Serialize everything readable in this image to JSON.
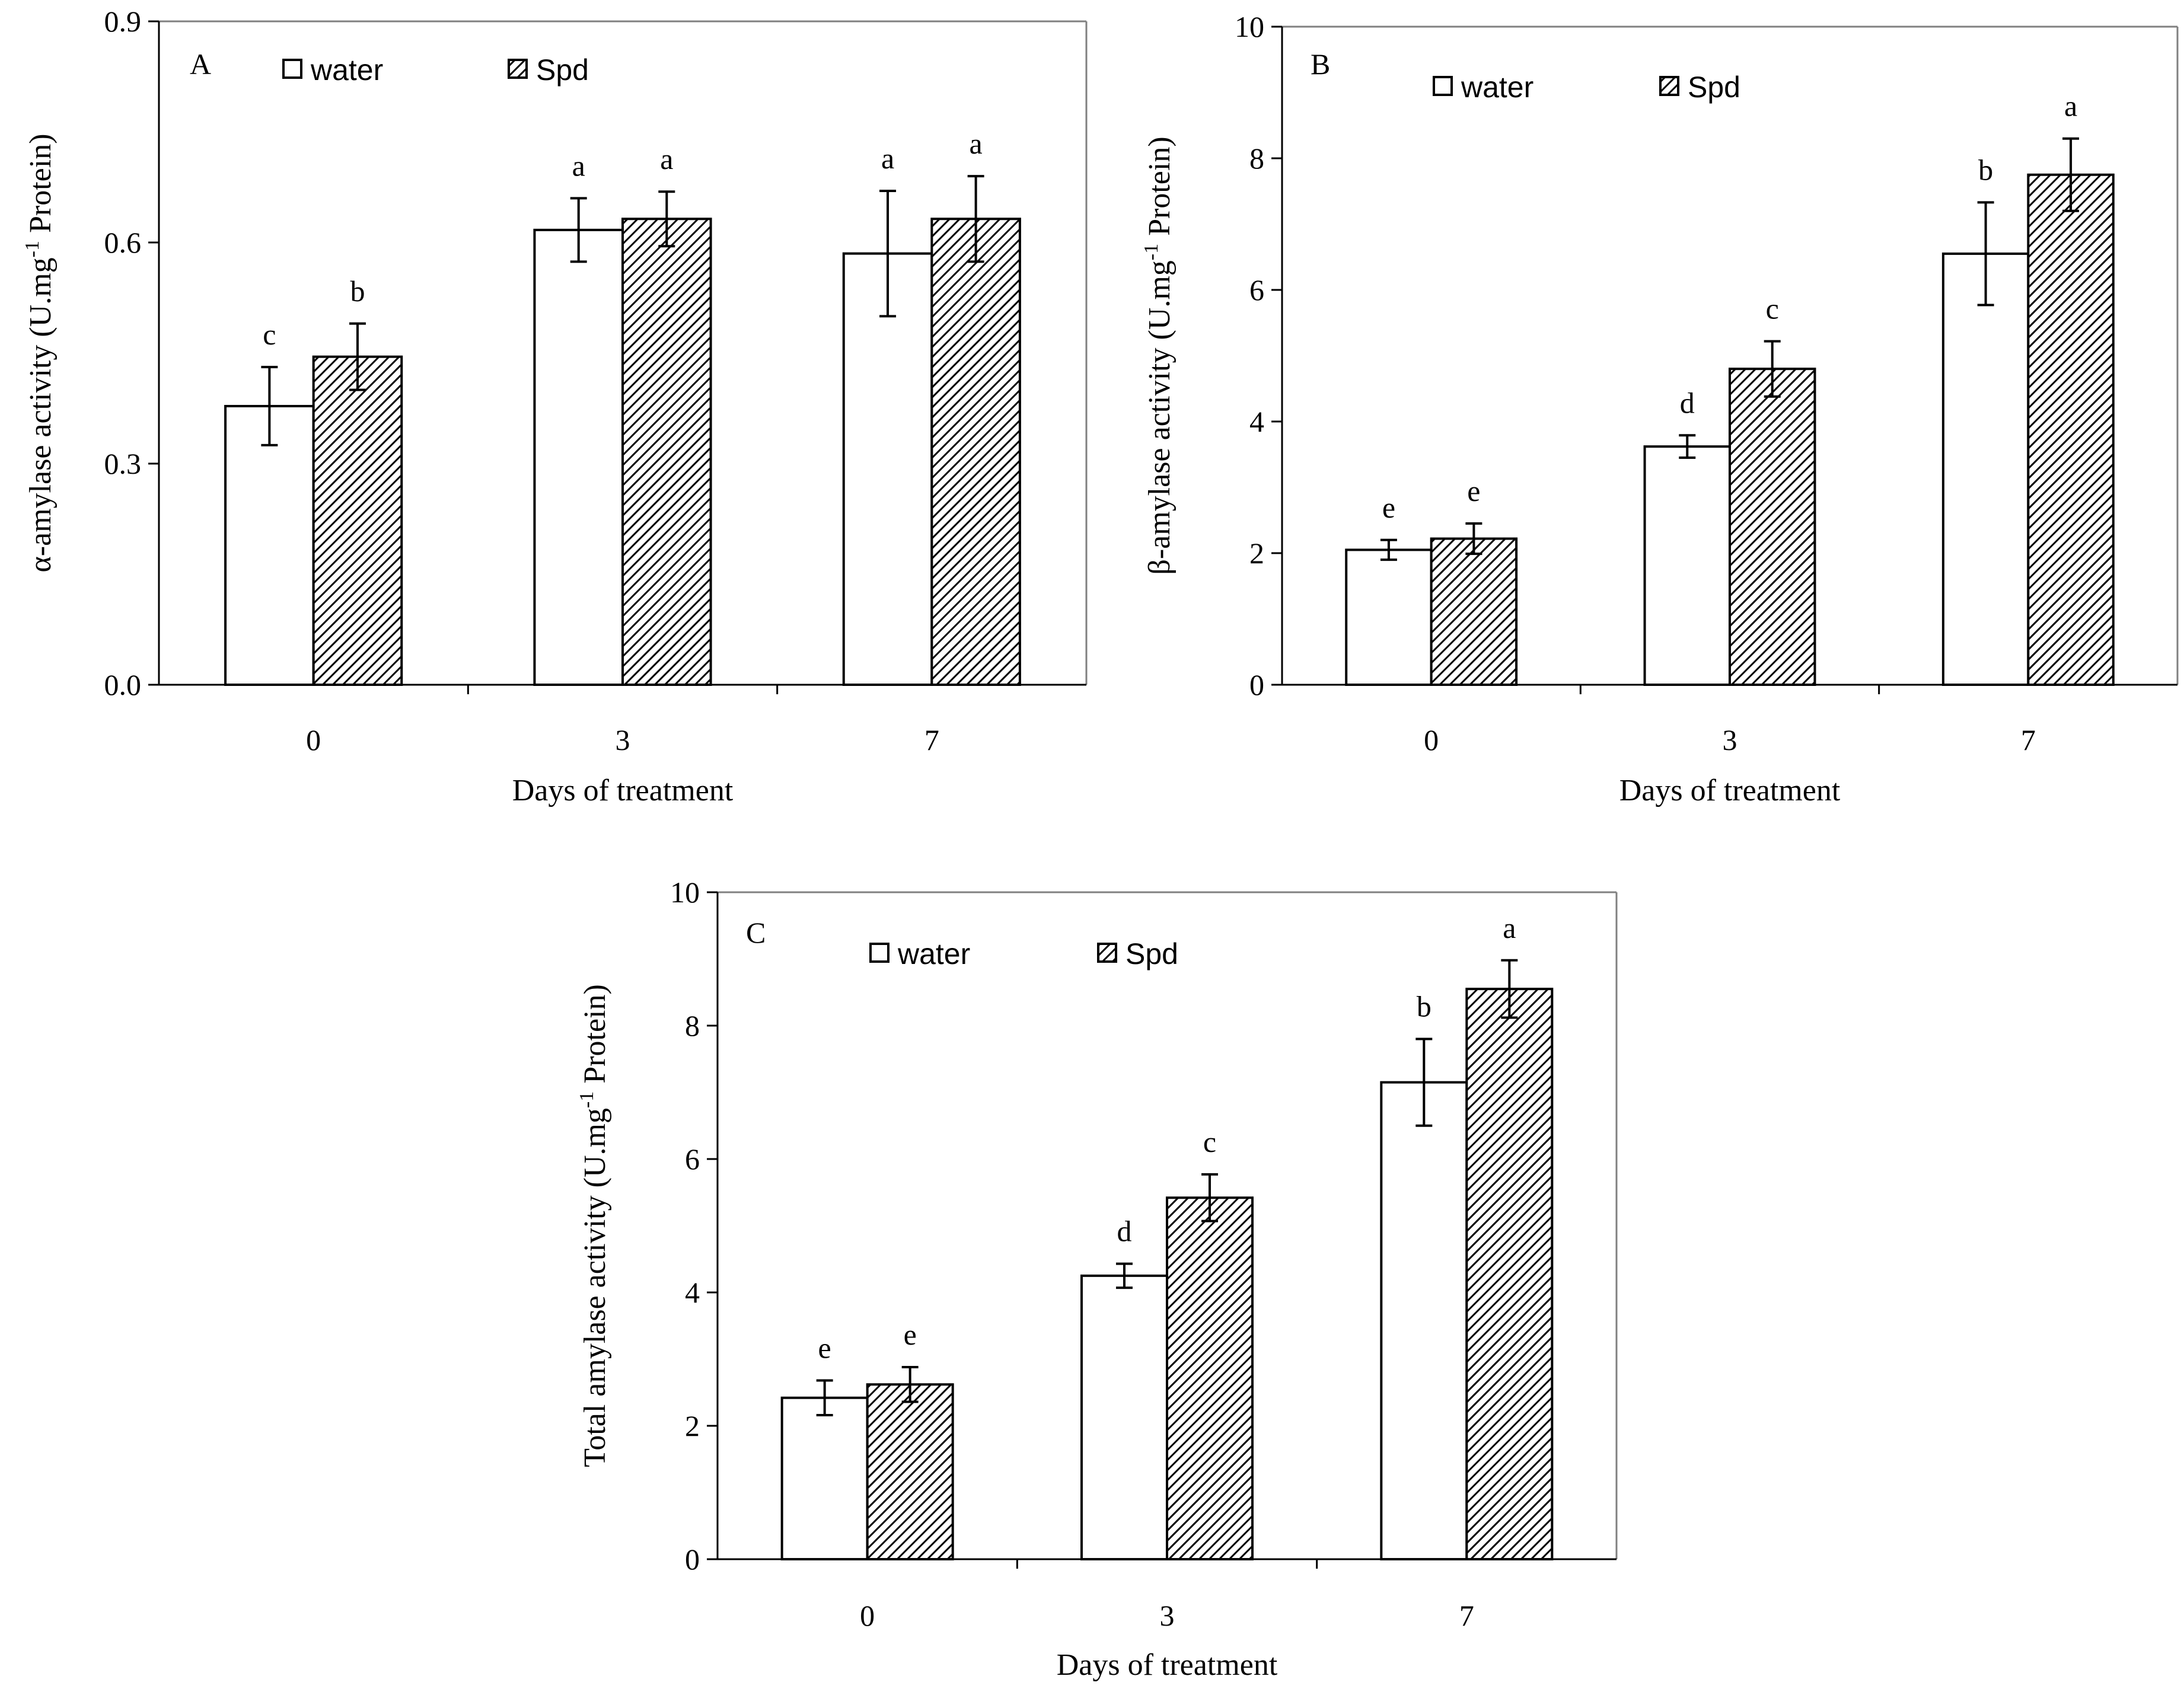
{
  "chart_data": [
    {
      "type": "bar",
      "panel": "A",
      "categories": [
        "0",
        "3",
        "7"
      ],
      "xlabel": "Days of treatment",
      "ylabel": {
        "before": "α-amylase activity (U.mg",
        "sup": "-1",
        "after": " Protein)"
      },
      "ylim": [
        0,
        0.9
      ],
      "yticks": [
        "0.0",
        "0.3",
        "0.6",
        "0.9"
      ],
      "legend": {
        "position": "top-left",
        "entries": [
          "water",
          "Spd"
        ]
      },
      "series": [
        {
          "name": "water",
          "values": [
            0.378,
            0.617,
            0.585
          ],
          "errors": [
            0.053,
            0.043,
            0.085
          ],
          "labels": [
            "c",
            "a",
            "a"
          ]
        },
        {
          "name": "Spd",
          "values": [
            0.445,
            0.632,
            0.632
          ],
          "errors": [
            0.045,
            0.037,
            0.058
          ],
          "labels": [
            "b",
            "a",
            "a"
          ]
        }
      ]
    },
    {
      "type": "bar",
      "panel": "B",
      "categories": [
        "0",
        "3",
        "7"
      ],
      "xlabel": "Days of treatment",
      "ylabel": {
        "before": "β-amylase activity (U.mg",
        "sup": "-1",
        "after": " Protein)"
      },
      "ylim": [
        0,
        10
      ],
      "yticks": [
        "0",
        "2",
        "4",
        "6",
        "8",
        "10"
      ],
      "legend": {
        "position": "top-left",
        "entries": [
          "water",
          "Spd"
        ]
      },
      "series": [
        {
          "name": "water",
          "values": [
            2.05,
            3.62,
            6.55
          ],
          "errors": [
            0.15,
            0.17,
            0.78
          ],
          "labels": [
            "e",
            "d",
            "b"
          ]
        },
        {
          "name": "Spd",
          "values": [
            2.22,
            4.8,
            7.75
          ],
          "errors": [
            0.23,
            0.42,
            0.55
          ],
          "labels": [
            "e",
            "c",
            "a"
          ]
        }
      ]
    },
    {
      "type": "bar",
      "panel": "C",
      "categories": [
        "0",
        "3",
        "7"
      ],
      "xlabel": "Days of treatment",
      "ylabel": {
        "before": "Total amylase activity (U.mg",
        "sup": "-1",
        "after": " Protein)"
      },
      "ylim": [
        0,
        10
      ],
      "yticks": [
        "0",
        "2",
        "4",
        "6",
        "8",
        "10"
      ],
      "legend": {
        "position": "top-left",
        "entries": [
          "water",
          "Spd"
        ]
      },
      "series": [
        {
          "name": "water",
          "values": [
            2.42,
            4.25,
            7.15
          ],
          "errors": [
            0.26,
            0.18,
            0.65
          ],
          "labels": [
            "e",
            "d",
            "b"
          ]
        },
        {
          "name": "Spd",
          "values": [
            2.62,
            5.42,
            8.55
          ],
          "errors": [
            0.26,
            0.35,
            0.43
          ],
          "labels": [
            "e",
            "c",
            "a"
          ]
        }
      ]
    }
  ],
  "colors": {
    "axis": "#000000",
    "frame": "#808080",
    "water_fill": "#ffffff",
    "spd_hatch": "#000000"
  },
  "icons": {
    "water": "open-square-legend-icon",
    "spd": "hatched-square-legend-icon"
  }
}
